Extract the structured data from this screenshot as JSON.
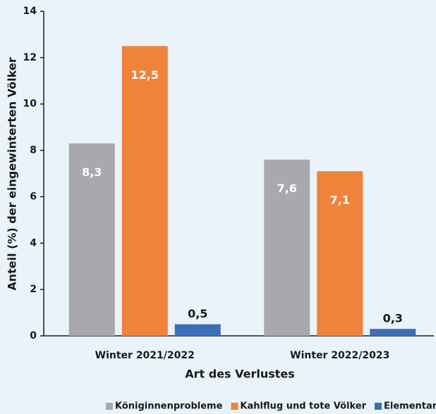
{
  "chart_data": {
    "type": "bar",
    "xlabel": "Art des Verlustes",
    "ylabel": "Anteil (%) der eingewinterten Völker",
    "categories": [
      "Winter 2021/2022",
      "Winter 2022/2023"
    ],
    "series": [
      {
        "name": "Königinnenprobleme",
        "color": "#a7a9ac",
        "values": [
          8.3,
          7.6
        ],
        "value_labels": [
          "8,3",
          "7,6"
        ]
      },
      {
        "name": "Kahlflug und tote Völker",
        "color": "#f0823a",
        "values": [
          12.5,
          7.1
        ],
        "value_labels": [
          "12,5",
          "7,1"
        ]
      },
      {
        "name": "Elementarschäden",
        "color": "#3b6fb6",
        "values": [
          0.5,
          0.3
        ],
        "value_labels": [
          "0,5",
          "0,3"
        ]
      }
    ],
    "ylim": [
      0,
      14
    ],
    "yticks": [
      0,
      2,
      4,
      6,
      8,
      10,
      12,
      14
    ],
    "grid": false,
    "legend": "bottom"
  }
}
